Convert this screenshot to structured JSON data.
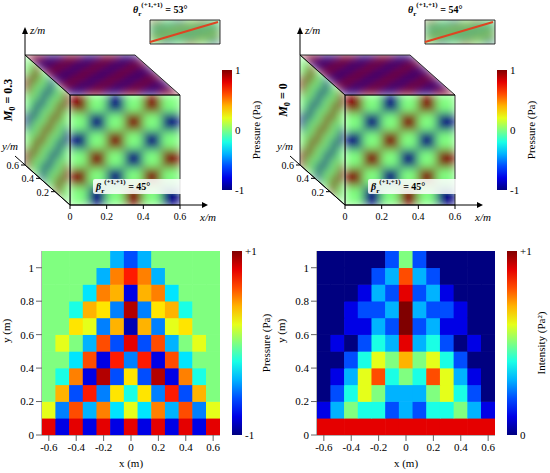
{
  "chart_data": [
    {
      "type": "cube_field",
      "label": {
        "base": "M",
        "sub": "0",
        "text": " = 0.3"
      },
      "theta_label": {
        "base": "θ",
        "sub": "r",
        "sup": "(+1,+1)",
        "text": " = 53°"
      },
      "beta_label": {
        "base": "β",
        "sub": "r",
        "sup": "(+1,+1)",
        "text": " = 45°"
      },
      "x_label": "x/m",
      "y_label": "y/m",
      "z_label": "z/m",
      "xlim": [
        0,
        0.6
      ],
      "xticks": [
        0,
        0.2,
        0.4,
        0.6
      ],
      "ylim": [
        0,
        0.6
      ],
      "yticks": [
        0.2,
        0.4,
        0.6
      ],
      "faces": {
        "front": [
          [
            1,
            0,
            -1,
            0,
            1,
            0
          ],
          [
            0,
            -1,
            0,
            1,
            0,
            -1
          ],
          [
            -1,
            0,
            1,
            0,
            -1,
            0
          ],
          [
            0,
            1,
            0,
            -1,
            0,
            1
          ],
          [
            1,
            0,
            -1,
            0,
            1,
            0
          ],
          [
            0,
            -1,
            0,
            1,
            0,
            -1
          ]
        ],
        "top": [
          [
            1,
            -1,
            1,
            -1,
            1,
            -1
          ],
          [
            -1,
            1,
            -1,
            1,
            -1,
            1
          ],
          [
            1,
            -1,
            1,
            -1,
            1,
            -1
          ],
          [
            -1,
            1,
            -1,
            1,
            -1,
            1
          ],
          [
            1,
            -1,
            1,
            -1,
            1,
            -1
          ],
          [
            -1,
            1,
            -1,
            1,
            -1,
            1
          ]
        ],
        "side": [
          [
            0,
            1,
            0,
            -1,
            0,
            1
          ],
          [
            1,
            0,
            -1,
            0,
            1,
            0
          ],
          [
            0,
            -1,
            0,
            1,
            0,
            -1
          ],
          [
            -1,
            0,
            1,
            0,
            -1,
            0
          ],
          [
            0,
            1,
            0,
            -1,
            0,
            1
          ],
          [
            1,
            0,
            -1,
            0,
            1,
            0
          ]
        ]
      },
      "colorbar": {
        "label": "Pressure (Pa)",
        "range": [
          -1,
          1
        ],
        "ticks": [
          1,
          0,
          -1
        ]
      }
    },
    {
      "type": "cube_field",
      "label": {
        "base": "M",
        "sub": "0",
        "text": " = 0"
      },
      "theta_label": {
        "base": "θ",
        "sub": "r",
        "sup": "(+1,+1)",
        "text": " = 54°"
      },
      "beta_label": {
        "base": "β",
        "sub": "r",
        "sup": "(+1,+1)",
        "text": " = 45°"
      },
      "x_label": "x/m",
      "y_label": "y/m",
      "z_label": "z/m",
      "xlim": [
        0,
        0.6
      ],
      "xticks": [
        0,
        0.2,
        0.4,
        0.6
      ],
      "ylim": [
        0,
        0.6
      ],
      "yticks": [
        0.2,
        0.4,
        0.6
      ],
      "faces": {
        "front": [
          [
            1,
            0,
            -1,
            0,
            1,
            0
          ],
          [
            0,
            -1,
            0,
            1,
            0,
            -1
          ],
          [
            -1,
            0,
            1,
            0,
            -1,
            0
          ],
          [
            0,
            1,
            0,
            -1,
            0,
            1
          ],
          [
            1,
            0,
            -1,
            0,
            1,
            0
          ],
          [
            0,
            -1,
            0,
            1,
            0,
            -1
          ]
        ],
        "top": [
          [
            1,
            -1,
            1,
            -1,
            1,
            -1
          ],
          [
            -1,
            1,
            -1,
            1,
            -1,
            1
          ],
          [
            1,
            -1,
            1,
            -1,
            1,
            -1
          ],
          [
            -1,
            1,
            -1,
            1,
            -1,
            1
          ],
          [
            1,
            -1,
            1,
            -1,
            1,
            -1
          ],
          [
            -1,
            1,
            -1,
            1,
            -1,
            1
          ]
        ],
        "side": [
          [
            0,
            1,
            0,
            -1,
            0,
            1
          ],
          [
            1,
            0,
            -1,
            0,
            1,
            0
          ],
          [
            0,
            -1,
            0,
            1,
            0,
            -1
          ],
          [
            -1,
            0,
            1,
            0,
            -1,
            0
          ],
          [
            0,
            1,
            0,
            -1,
            0,
            1
          ],
          [
            1,
            0,
            -1,
            0,
            1,
            0
          ]
        ]
      },
      "colorbar": {
        "label": "Pressure (Pa)",
        "range": [
          -1,
          1
        ],
        "ticks": [
          1,
          0,
          -1
        ]
      }
    },
    {
      "type": "heatmap",
      "x": [
        -0.6,
        -0.5,
        -0.4,
        -0.3,
        -0.2,
        -0.1,
        0,
        0.1,
        0.2,
        0.3,
        0.4,
        0.5,
        0.6
      ],
      "y": [
        0.05,
        0.15,
        0.25,
        0.35,
        0.45,
        0.55,
        0.65,
        0.75,
        0.85,
        0.95,
        1.05
      ],
      "cells": [
        [
          0.8,
          -0.8,
          0.8,
          -0.8,
          0.8,
          -0.8,
          0.8,
          -0.8,
          0.8,
          -0.8,
          0.8,
          -0.8,
          0.8
        ],
        [
          0.2,
          -0.5,
          0.6,
          -0.4,
          0.5,
          -0.3,
          0.2,
          -0.3,
          0.5,
          -0.4,
          0.6,
          -0.5,
          0.2
        ],
        [
          0,
          0.4,
          -0.6,
          0.7,
          -0.5,
          0.3,
          -0.2,
          0.3,
          -0.5,
          0.7,
          -0.6,
          0.4,
          0
        ],
        [
          0,
          -0.2,
          0.5,
          -0.8,
          0.9,
          -0.6,
          0.3,
          -0.6,
          0.9,
          -0.8,
          0.5,
          -0.2,
          0
        ],
        [
          0,
          0,
          -0.3,
          0.6,
          -0.8,
          0.7,
          -0.5,
          0.7,
          -0.8,
          0.6,
          -0.3,
          0,
          0
        ],
        [
          0,
          0.2,
          0,
          -0.4,
          0.6,
          -0.6,
          0.8,
          -0.6,
          0.6,
          -0.4,
          0,
          0.2,
          0
        ],
        [
          0,
          0,
          0.3,
          0.2,
          -0.5,
          0.4,
          -0.9,
          0.4,
          -0.5,
          0.2,
          0.3,
          0,
          0
        ],
        [
          0,
          0,
          -0.2,
          0.4,
          0.3,
          -0.5,
          0.9,
          -0.5,
          0.3,
          0.4,
          -0.2,
          0,
          0
        ],
        [
          0,
          0,
          0,
          -0.3,
          0.5,
          0.4,
          -0.8,
          0.4,
          0.5,
          -0.3,
          0,
          0,
          0
        ],
        [
          0,
          0,
          0,
          0,
          -0.4,
          0.5,
          0.7,
          0.5,
          -0.4,
          0,
          0,
          0,
          0
        ],
        [
          0,
          0,
          0,
          0,
          0,
          -0.4,
          -0.6,
          -0.4,
          0,
          0,
          0,
          0,
          0
        ]
      ],
      "xlim": [
        -0.65,
        0.65
      ],
      "xticks": [
        -0.6,
        -0.4,
        -0.2,
        0,
        0.2,
        0.4,
        0.6
      ],
      "ylim": [
        0,
        1.1
      ],
      "yticks": [
        0,
        0.2,
        0.4,
        0.6,
        0.8,
        1
      ],
      "x_label": "x (m)",
      "y_label": "y (m)",
      "colorbar": {
        "label": "Pressure (Pa)",
        "range": [
          -1,
          1
        ],
        "ticks": [
          {
            "value": 1,
            "label": "+1"
          },
          -1
        ]
      }
    },
    {
      "type": "heatmap",
      "x": [
        -0.6,
        -0.5,
        -0.4,
        -0.3,
        -0.2,
        -0.1,
        0,
        0.1,
        0.2,
        0.3,
        0.4,
        0.5,
        0.6
      ],
      "y": [
        0.05,
        0.15,
        0.25,
        0.35,
        0.45,
        0.55,
        0.65,
        0.75,
        0.85,
        0.95,
        1.05
      ],
      "cells": [
        [
          0.9,
          0.9,
          0.9,
          0.9,
          0.9,
          0.9,
          0.9,
          0.9,
          0.9,
          0.9,
          0.9,
          0.9,
          0.9
        ],
        [
          0.1,
          0.3,
          0.5,
          0.4,
          0.4,
          0.2,
          0.3,
          0.2,
          0.4,
          0.4,
          0.5,
          0.3,
          0.1
        ],
        [
          0,
          0.2,
          0.4,
          0.6,
          0.5,
          0.3,
          0.3,
          0.3,
          0.5,
          0.6,
          0.4,
          0.2,
          0
        ],
        [
          0,
          0.1,
          0.3,
          0.6,
          0.8,
          0.4,
          0.5,
          0.4,
          0.8,
          0.6,
          0.3,
          0.1,
          0
        ],
        [
          0,
          0,
          0.2,
          0.4,
          0.6,
          0.5,
          0.7,
          0.5,
          0.6,
          0.4,
          0.2,
          0,
          0
        ],
        [
          0,
          0.1,
          0,
          0.2,
          0.4,
          0.3,
          0.9,
          0.3,
          0.4,
          0.2,
          0,
          0.1,
          0
        ],
        [
          0,
          0,
          0.1,
          0.1,
          0.3,
          0.2,
          1,
          0.2,
          0.3,
          0.1,
          0.1,
          0,
          0
        ],
        [
          0,
          0,
          0.1,
          0.2,
          0.2,
          0.3,
          1,
          0.3,
          0.2,
          0.2,
          0.1,
          0,
          0
        ],
        [
          0,
          0,
          0,
          0.1,
          0.3,
          0.2,
          0.9,
          0.2,
          0.3,
          0.1,
          0,
          0,
          0
        ],
        [
          0,
          0,
          0,
          0,
          0.2,
          0.3,
          0.8,
          0.3,
          0.2,
          0,
          0,
          0,
          0
        ],
        [
          0,
          0,
          0,
          0,
          0,
          0.2,
          0.5,
          0.2,
          0,
          0,
          0,
          0,
          0
        ]
      ],
      "xlim": [
        -0.65,
        0.65
      ],
      "xticks": [
        -0.6,
        -0.4,
        -0.2,
        0,
        0.2,
        0.4,
        0.6
      ],
      "ylim": [
        0,
        1.1
      ],
      "yticks": [
        0,
        0.2,
        0.4,
        0.6,
        0.8,
        1
      ],
      "x_label": "x (m)",
      "y_label": "y (m)",
      "colorbar": {
        "label": "Intensity (Pa²)",
        "range": [
          0,
          1
        ],
        "ticks": [
          {
            "value": 1,
            "label": "+1"
          },
          0
        ]
      }
    }
  ]
}
